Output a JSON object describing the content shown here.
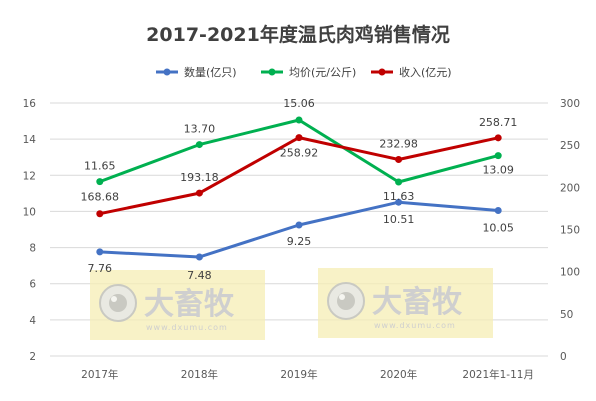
{
  "chart_data": {
    "type": "line",
    "title": "2017-2021年度温氏肉鸡销售情况",
    "categories": [
      "2017年",
      "2018年",
      "2019年",
      "2020年",
      "2021年1-11月"
    ],
    "y_left": {
      "min": 2,
      "max": 16,
      "ticks": [
        2,
        4,
        6,
        8,
        10,
        12,
        14,
        16
      ]
    },
    "y_right": {
      "min": 0,
      "max": 300,
      "ticks": [
        0,
        50,
        100,
        150,
        200,
        250,
        300
      ]
    },
    "grid": true,
    "legend_position": "top",
    "series": [
      {
        "name": "数量(亿只)",
        "axis": "left",
        "color": "#4472C4",
        "values": [
          7.76,
          7.48,
          9.25,
          10.51,
          10.05
        ],
        "labels": [
          "7.76",
          "7.48",
          "9.25",
          "10.51",
          "10.05"
        ]
      },
      {
        "name": "均价(元/公斤)",
        "axis": "left",
        "color": "#00B050",
        "values": [
          11.65,
          13.7,
          15.06,
          11.63,
          13.09
        ],
        "labels": [
          "11.65",
          "13.70",
          "15.06",
          "11.63",
          "13.09"
        ]
      },
      {
        "name": "收入(亿元)",
        "axis": "right",
        "color": "#C00000",
        "values": [
          168.68,
          193.18,
          258.92,
          232.98,
          258.71
        ],
        "labels": [
          "168.68",
          "193.18",
          "258.92",
          "232.98",
          "258.71"
        ]
      }
    ]
  },
  "watermark": {
    "brand": "大畜牧",
    "site": "www.dxumu.com",
    "icon": "eye-logo-icon"
  }
}
